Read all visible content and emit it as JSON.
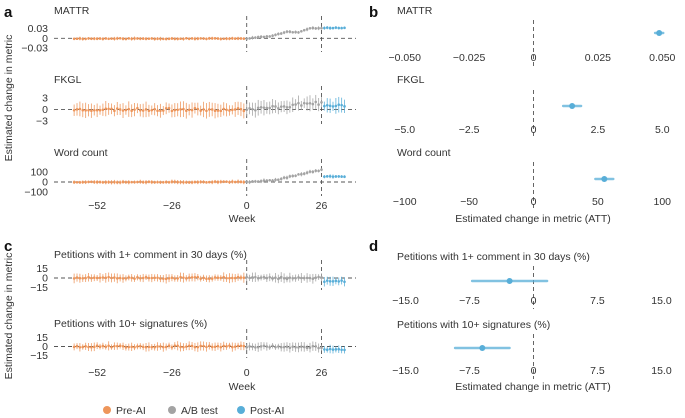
{
  "colors": {
    "pre": "#EE965B",
    "ab": "#A3A3A3",
    "post": "#58AED8"
  },
  "panel_labels": [
    "a",
    "b",
    "c",
    "d"
  ],
  "legend": [
    {
      "label": "Pre-AI",
      "color_key": "pre"
    },
    {
      "label": "A/B test",
      "color_key": "ab"
    },
    {
      "label": "Post-AI",
      "color_key": "post"
    }
  ],
  "chart_data": [
    {
      "panel": "a",
      "type": "scatter",
      "ylabel": "Estimated change in metric",
      "xlabel": "Week",
      "x_ticks": [
        -52,
        -26,
        0,
        26
      ],
      "xlim": [
        -67,
        38
      ],
      "phase_boundaries": [
        0,
        26
      ],
      "subplots": [
        {
          "title": "MATTR",
          "y_ticks": [
            0.03,
            0,
            -0.03
          ],
          "y_tick_labels": [
            "0.03",
            "0",
            "−0.03"
          ],
          "ylim": [
            -0.042,
            0.05
          ],
          "ci_scale": 0.006,
          "pre_offset": -0.001,
          "seed": 11,
          "ab_trend": [
            [
              0,
              0.0
            ],
            [
              8,
              0.006
            ],
            [
              14,
              0.02
            ],
            [
              18,
              0.018
            ],
            [
              22,
              0.03
            ],
            [
              26,
              0.032
            ]
          ],
          "post_level": 0.032
        },
        {
          "title": "FKGL",
          "y_ticks": [
            3,
            0,
            -3
          ],
          "y_tick_labels": [
            "3",
            "0",
            "−3"
          ],
          "ylim": [
            -3.8,
            4.6
          ],
          "ci_scale": 2.1,
          "pre_offset": 0,
          "seed": 23,
          "ab_trend": [
            [
              0,
              0.0
            ],
            [
              10,
              0.6
            ],
            [
              16,
              1.1
            ],
            [
              22,
              1.8
            ],
            [
              26,
              1.6
            ]
          ],
          "post_level": 1.0
        },
        {
          "title": "Word count",
          "y_ticks": [
            100,
            0,
            -100
          ],
          "y_tick_labels": [
            "100",
            "0",
            "−100"
          ],
          "ylim": [
            -140,
            170
          ],
          "ci_scale": 22,
          "pre_offset": 0,
          "seed": 37,
          "ab_trend": [
            [
              0,
              0
            ],
            [
              10,
              20
            ],
            [
              16,
              60
            ],
            [
              22,
              100
            ],
            [
              26,
              120
            ]
          ],
          "post_level": 55
        }
      ]
    },
    {
      "panel": "b",
      "type": "scatter",
      "xlabel": "Estimated change in metric (ATT)",
      "subplots": [
        {
          "title": "MATTR",
          "x_ticks": [
            -0.05,
            -0.025,
            0,
            0.025,
            0.05
          ],
          "x_tick_labels": [
            "−0.050",
            "−0.025",
            "0",
            "0.025",
            "0.050"
          ],
          "xlim": [
            -0.053,
            0.053
          ],
          "estimate": 0.0488,
          "ci": [
            0.0472,
            0.0504
          ]
        },
        {
          "title": "FKGL",
          "x_ticks": [
            -5,
            -2.5,
            0,
            2.5,
            5
          ],
          "x_tick_labels": [
            "−5.0",
            "−2.5",
            "0",
            "2.5",
            "5.0"
          ],
          "xlim": [
            -5.3,
            5.3
          ],
          "estimate": 1.5,
          "ci": [
            1.15,
            1.85
          ]
        },
        {
          "title": "Word count",
          "x_ticks": [
            -100,
            -50,
            0,
            50,
            100
          ],
          "x_tick_labels": [
            "−100",
            "−50",
            "0",
            "50",
            "100"
          ],
          "xlim": [
            -106,
            106
          ],
          "estimate": 55,
          "ci": [
            48,
            62
          ]
        }
      ]
    },
    {
      "panel": "c",
      "type": "scatter",
      "ylabel": "Estimated change in metric",
      "xlabel": "Week",
      "x_ticks": [
        -52,
        -26,
        0,
        26
      ],
      "xlim": [
        -67,
        38
      ],
      "phase_boundaries": [
        0,
        26
      ],
      "subplots": [
        {
          "title": "Petitions with 1+ comment in 30 days (%)",
          "y_ticks": [
            15,
            0,
            -15
          ],
          "y_tick_labels": [
            "15",
            "0",
            "−15"
          ],
          "ylim": [
            -19,
            19
          ],
          "ci_scale": 8,
          "pre_offset": 0,
          "seed": 51,
          "ab_trend": [
            [
              0,
              0
            ],
            [
              26,
              0
            ]
          ],
          "post_level": -5
        },
        {
          "title": "Petitions with 10+ signatures (%)",
          "y_ticks": [
            15,
            0,
            -15
          ],
          "y_tick_labels": [
            "15",
            "0",
            "−15"
          ],
          "ylim": [
            -19,
            19
          ],
          "ci_scale": 8,
          "pre_offset": 0,
          "seed": 67,
          "ab_trend": [
            [
              0,
              0
            ],
            [
              26,
              -1
            ]
          ],
          "post_level": -5
        }
      ]
    },
    {
      "panel": "d",
      "type": "scatter",
      "xlabel": "Estimated change in metric (ATT)",
      "subplots": [
        {
          "title": "Petitions with 1+ comment in 30 days (%)",
          "x_ticks": [
            -15,
            -7.5,
            0,
            7.5,
            15
          ],
          "x_tick_labels": [
            "−15.0",
            "−7.5",
            "0",
            "7.5",
            "15.0"
          ],
          "xlim": [
            -16,
            16
          ],
          "estimate": -2.8,
          "ci": [
            -7.2,
            1.6
          ]
        },
        {
          "title": "Petitions with 10+ signatures (%)",
          "x_ticks": [
            -15,
            -7.5,
            0,
            7.5,
            15
          ],
          "x_tick_labels": [
            "−15.0",
            "−7.5",
            "0",
            "7.5",
            "15.0"
          ],
          "xlim": [
            -16,
            16
          ],
          "estimate": -6.0,
          "ci": [
            -9.2,
            -2.8
          ]
        }
      ]
    }
  ]
}
